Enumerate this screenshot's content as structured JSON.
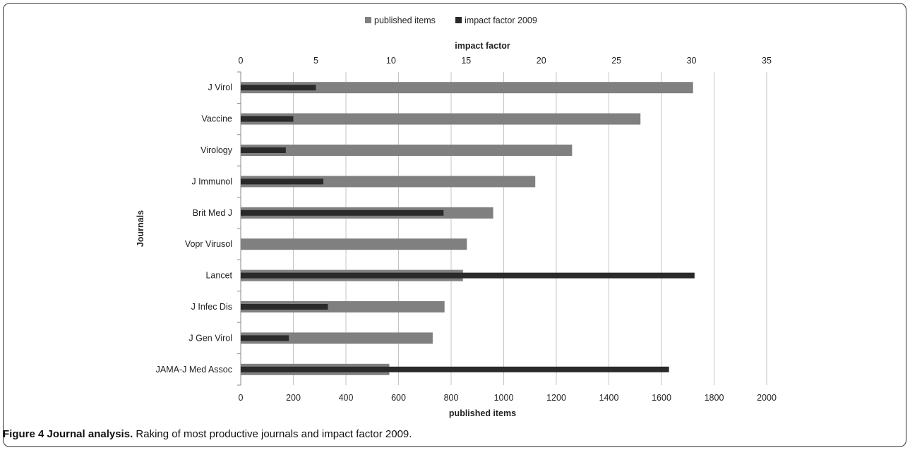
{
  "chart_data": {
    "type": "bar",
    "categories": [
      "J Virol",
      "Vaccine",
      "Virology",
      "J Immunol",
      "Brit Med J",
      "Vopr Virusol",
      "Lancet",
      "J Infec Dis",
      "J Gen Virol",
      "JAMA-J Med Assoc"
    ],
    "series": [
      {
        "name": "published items",
        "axis": "bottom",
        "values": [
          1720,
          1520,
          1260,
          1120,
          960,
          860,
          845,
          775,
          730,
          565
        ],
        "color": "#808080"
      },
      {
        "name": "impact factor 2009",
        "axis": "top",
        "values": [
          5.0,
          3.5,
          3.0,
          5.5,
          13.5,
          null,
          30.2,
          5.8,
          3.2,
          28.5
        ],
        "color": "#2a2a2a"
      }
    ],
    "xlabel": "published items",
    "x2label": "impact factor",
    "ylabel": "Journals",
    "xlim": [
      0,
      2000
    ],
    "xticks": [
      "0",
      "200",
      "400",
      "600",
      "800",
      "1000",
      "1200",
      "1400",
      "1600",
      "1800",
      "2000"
    ],
    "x2lim": [
      0,
      35
    ],
    "x2ticks": [
      "0",
      "5",
      "10",
      "15",
      "20",
      "25",
      "30",
      "35"
    ],
    "grid": true,
    "legend_position": "top"
  },
  "caption": {
    "label": "Figure 4 Journal analysis.",
    "text": " Raking of most productive journals and impact factor 2009."
  }
}
